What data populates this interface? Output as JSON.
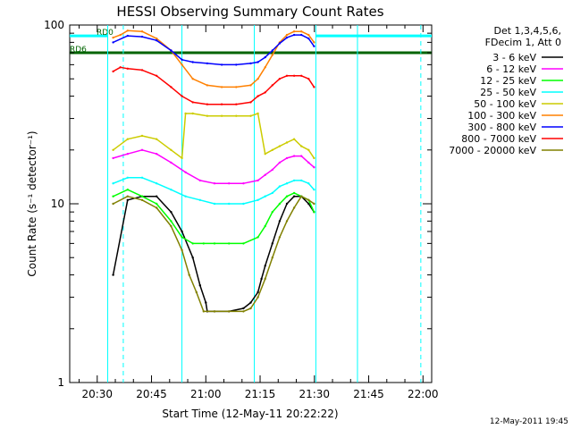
{
  "chart_data": {
    "type": "line",
    "title": "HESSI Observing Summary Count Rates",
    "xlabel": "Start Time (12-May-11 20:22:22)",
    "ylabel": "Count Rate (s⁻¹ detector⁻¹)",
    "x_unit": "minutes after 20:22:22",
    "xlim": [
      0,
      100
    ],
    "ylim": [
      1,
      100
    ],
    "yscale": "log",
    "x_ticks": [
      {
        "x": 7.6,
        "label": "20:30"
      },
      {
        "x": 22.6,
        "label": "20:45"
      },
      {
        "x": 37.6,
        "label": "21:00"
      },
      {
        "x": 52.6,
        "label": "21:15"
      },
      {
        "x": 67.6,
        "label": "21:30"
      },
      {
        "x": 82.6,
        "label": "21:45"
      },
      {
        "x": 97.6,
        "label": "22:00"
      }
    ],
    "y_ticks": [
      {
        "y": 1,
        "label": "1"
      },
      {
        "y": 10,
        "label": "10"
      },
      {
        "y": 100,
        "label": "100"
      }
    ],
    "legend_header": [
      "Det 1,3,4,5,6,",
      "FDecim 1, Att 0"
    ],
    "legend_position": "right",
    "series": [
      {
        "name": "3 - 6 keV",
        "color": "#000000",
        "x": [
          12,
          16,
          20,
          24,
          28,
          31,
          34,
          36,
          37.6,
          38,
          40,
          44,
          48,
          50,
          52,
          53,
          54,
          56,
          58,
          60,
          62,
          64,
          66,
          67.5
        ],
        "y": [
          4,
          10.5,
          11,
          11,
          9,
          7,
          5,
          3.5,
          2.8,
          2.5,
          2.5,
          2.5,
          2.6,
          2.8,
          3.2,
          3.8,
          4.5,
          6,
          8,
          10,
          11,
          11,
          10,
          9
        ]
      },
      {
        "name": "6 - 12 keV",
        "color": "#ff00ff",
        "x": [
          12,
          16,
          20,
          24,
          28,
          32,
          36,
          40,
          44,
          48,
          52,
          54,
          56,
          58,
          60,
          62,
          64,
          66,
          67.5
        ],
        "y": [
          18,
          19,
          20,
          19,
          17,
          15,
          13.5,
          13,
          13,
          13,
          13.5,
          14.5,
          15.5,
          17,
          18,
          18.5,
          18.5,
          17,
          16
        ]
      },
      {
        "name": "12 - 25 keV",
        "color": "#00ff00",
        "x": [
          12,
          16,
          20,
          24,
          28,
          31,
          34,
          37,
          40,
          44,
          48,
          52,
          54,
          56,
          58,
          60,
          62,
          64,
          66,
          67.5
        ],
        "y": [
          11,
          12,
          11,
          10,
          8,
          6.5,
          6,
          6,
          6,
          6,
          6,
          6.5,
          7.5,
          9,
          10,
          11,
          11.5,
          11,
          10.5,
          9
        ]
      },
      {
        "name": "25 - 50 keV",
        "color": "#00ffff",
        "x": [
          12,
          16,
          20,
          24,
          28,
          32,
          36,
          40,
          44,
          48,
          52,
          54,
          56,
          58,
          60,
          62,
          64,
          66,
          67.5
        ],
        "y": [
          13,
          14,
          14,
          13,
          12,
          11,
          10.5,
          10,
          10,
          10,
          10.5,
          11,
          11.5,
          12.5,
          13,
          13.5,
          13.5,
          13,
          12
        ]
      },
      {
        "name": "50 - 100 keV",
        "color": "#cccc00",
        "x": [
          12,
          16,
          20,
          24,
          28,
          31,
          32,
          34,
          38,
          42,
          46,
          50,
          52,
          54,
          56,
          58,
          60,
          62,
          64,
          66,
          67.5
        ],
        "y": [
          20,
          23,
          24,
          23,
          20,
          18,
          32,
          32,
          31,
          31,
          31,
          31,
          32,
          19,
          20,
          21,
          22,
          23,
          21,
          20,
          18
        ]
      },
      {
        "name": "100 - 300 keV",
        "color": "#ff8000",
        "x": [
          12,
          14,
          16,
          20,
          24,
          28,
          31,
          34,
          38,
          42,
          46,
          50,
          52,
          54,
          56,
          58,
          60,
          62,
          64,
          66,
          67.5
        ],
        "y": [
          85,
          88,
          93,
          92,
          84,
          72,
          60,
          50,
          46,
          45,
          45,
          46,
          50,
          58,
          68,
          80,
          88,
          92,
          92,
          88,
          80
        ]
      },
      {
        "name": "300 - 800 keV",
        "color": "#0000ff",
        "x": [
          12,
          16,
          20,
          24,
          28,
          31,
          34,
          38,
          42,
          46,
          50,
          52,
          54,
          56,
          58,
          60,
          62,
          64,
          66,
          67.5
        ],
        "y": [
          80,
          87,
          86,
          82,
          72,
          64,
          62,
          61,
          60,
          60,
          61,
          62,
          66,
          72,
          79,
          85,
          88,
          88,
          84,
          76
        ]
      },
      {
        "name": "800 - 7000 keV",
        "color": "#ff0000",
        "x": [
          12,
          14,
          16,
          20,
          24,
          28,
          31,
          34,
          38,
          42,
          46,
          50,
          52,
          54,
          56,
          58,
          60,
          62,
          64,
          66,
          67.5
        ],
        "y": [
          55,
          58,
          57,
          56,
          52,
          45,
          40,
          37,
          36,
          36,
          36,
          37,
          40,
          42,
          46,
          50,
          52,
          52,
          52,
          50,
          45
        ]
      },
      {
        "name": "7000 - 20000 keV",
        "color": "#808000",
        "x": [
          12,
          16,
          20,
          24,
          28,
          31,
          33,
          35,
          37,
          40,
          44,
          48,
          50,
          52,
          54,
          56,
          58,
          60,
          62,
          64,
          66,
          67.5
        ],
        "y": [
          10,
          11,
          10.5,
          9.5,
          7.5,
          5.5,
          4,
          3.2,
          2.5,
          2.5,
          2.5,
          2.5,
          2.6,
          3,
          3.8,
          5,
          6.5,
          8,
          9.5,
          11,
          10.5,
          10
        ]
      }
    ],
    "flags": [
      {
        "label": "RD0",
        "color": "#00ffff",
        "segments": [
          [
            0,
            10.5
          ],
          [
            68,
            100
          ]
        ],
        "y": 87
      },
      {
        "label": "RD6",
        "color": "#006400",
        "segments": [
          [
            0,
            100
          ]
        ],
        "y": 70
      }
    ],
    "vertical_lines": [
      {
        "x": 10.5,
        "color": "#00ffff",
        "style": "solid"
      },
      {
        "x": 14.8,
        "color": "#00ffff",
        "style": "dashed"
      },
      {
        "x": 31,
        "color": "#00ffff",
        "style": "solid"
      },
      {
        "x": 51,
        "color": "#00ffff",
        "style": "solid"
      },
      {
        "x": 68,
        "color": "#00ffff",
        "style": "solid"
      },
      {
        "x": 79.5,
        "color": "#00ffff",
        "style": "solid"
      },
      {
        "x": 97,
        "color": "#00ffff",
        "style": "dashed"
      }
    ]
  },
  "footer": {
    "date_stamp": "12-May-2011 19:45"
  }
}
